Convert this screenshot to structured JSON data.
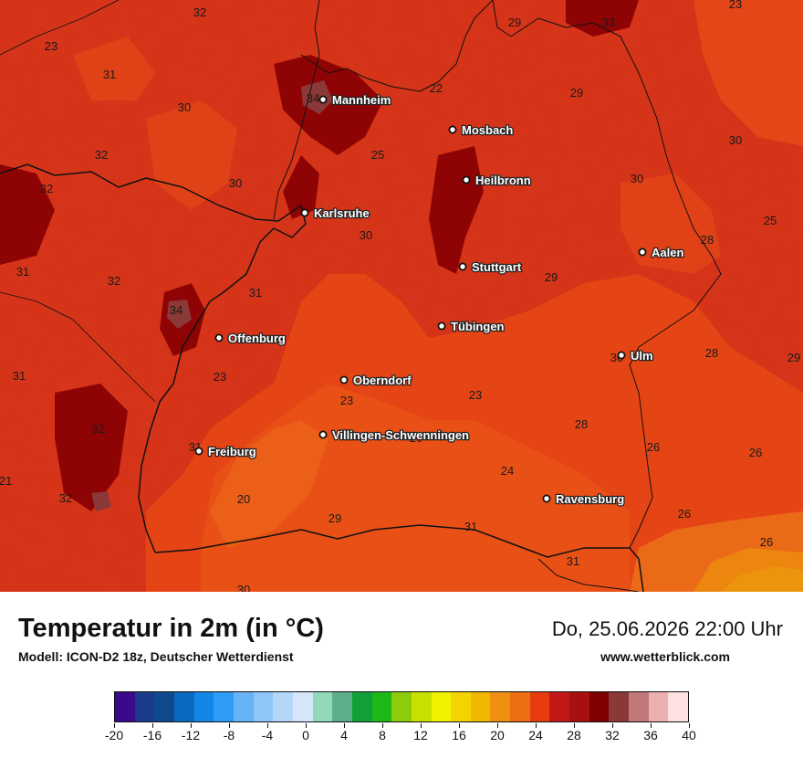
{
  "map": {
    "cities": [
      {
        "name": "Mannheim"
      },
      {
        "name": "Mosbach"
      },
      {
        "name": "Heilbronn"
      },
      {
        "name": "Karlsruhe"
      },
      {
        "name": "Aalen"
      },
      {
        "name": "Stuttgart"
      },
      {
        "name": "Tübingen"
      },
      {
        "name": "Offenburg"
      },
      {
        "name": "Ulm"
      },
      {
        "name": "Oberndorf"
      },
      {
        "name": "Villingen-Schwenningen"
      },
      {
        "name": "Freiburg"
      },
      {
        "name": "Ravensburg"
      }
    ],
    "values": [
      "32",
      "29",
      "33",
      "23",
      "23",
      "34",
      "22",
      "30",
      "29",
      "31",
      "30",
      "25",
      "32",
      "32",
      "30",
      "30",
      "25",
      "30",
      "28",
      "31",
      "32",
      "31",
      "29",
      "34",
      "31",
      "30",
      "23",
      "28",
      "23",
      "23",
      "29",
      "21",
      "32",
      "31",
      "28",
      "20",
      "26",
      "26",
      "24",
      "32",
      "20",
      "26",
      "26",
      "29",
      "31",
      "31",
      "30"
    ]
  },
  "footer": {
    "title": "Temperatur in 2m (in °C)",
    "model": "Modell: ICON-D2 18z, Deutscher Wetterdienst",
    "datetime": "Do, 25.06.2026 22:00 Uhr",
    "website": "www.wetterblick.com"
  },
  "legend": {
    "colors": [
      "#3b0a8c",
      "#1a3a8a",
      "#104a8e",
      "#0a6ac0",
      "#1486e8",
      "#2e9cf5",
      "#66b3f5",
      "#8fc6f7",
      "#b4d7f8",
      "#d5e6fb",
      "#94d8bc",
      "#5cad8a",
      "#12a038",
      "#1eb818",
      "#8ccc0c",
      "#c8e000",
      "#f2f200",
      "#f2d400",
      "#f2b800",
      "#ef9012",
      "#ec6e12",
      "#e63c10",
      "#c21818",
      "#a81010",
      "#7e0000",
      "#8a3838",
      "#c07878",
      "#ecb0b0",
      "#fde0e0"
    ],
    "ticks": [
      "-20",
      "-16",
      "-12",
      "-8",
      "-4",
      "0",
      "4",
      "8",
      "12",
      "16",
      "20",
      "24",
      "28",
      "32",
      "36",
      "40"
    ]
  }
}
